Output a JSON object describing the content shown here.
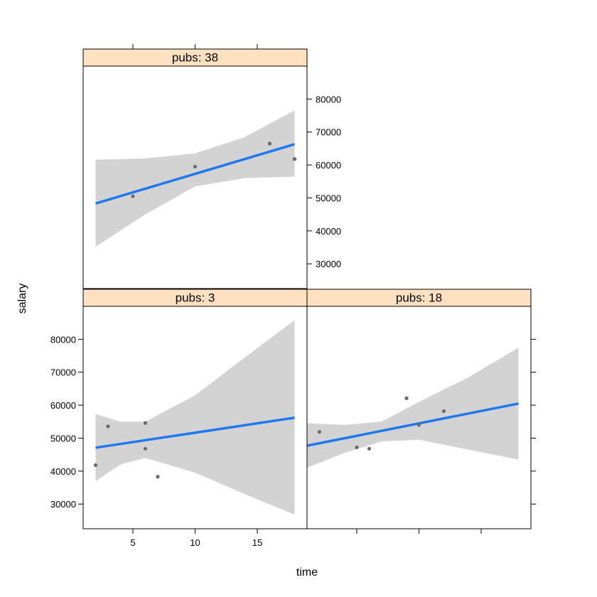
{
  "chart_data": {
    "type": "scatter",
    "xlabel": "time",
    "ylabel": "salary",
    "xlim": [
      1,
      19
    ],
    "ylim": [
      22500,
      90000
    ],
    "x_ticks": [
      5,
      10,
      15
    ],
    "y_ticks": [
      30000,
      40000,
      50000,
      60000,
      70000,
      80000
    ],
    "x_tick_labels": [
      "5",
      "10",
      "15"
    ],
    "y_tick_labels": [
      "30000",
      "40000",
      "50000",
      "60000",
      "70000",
      "80000"
    ],
    "panels": [
      {
        "strip": "pubs: 38",
        "points": [
          [
            5,
            50500
          ],
          [
            10,
            59500
          ],
          [
            16,
            66500
          ],
          [
            18,
            61800
          ]
        ],
        "fit": [
          [
            2,
            48300
          ],
          [
            18,
            66300
          ]
        ],
        "band_upper": [
          [
            2,
            61600
          ],
          [
            6,
            62000
          ],
          [
            10,
            63500
          ],
          [
            14,
            68500
          ],
          [
            18,
            76600
          ]
        ],
        "band_lower": [
          [
            2,
            35200
          ],
          [
            6,
            45000
          ],
          [
            10,
            53500
          ],
          [
            14,
            56000
          ],
          [
            18,
            56500
          ]
        ]
      },
      {
        "strip": "pubs: 3",
        "points": [
          [
            2,
            41800
          ],
          [
            3,
            53600
          ],
          [
            6,
            54600
          ],
          [
            6,
            46800
          ],
          [
            7,
            38300
          ]
        ],
        "fit": [
          [
            2,
            47100
          ],
          [
            18,
            56200
          ]
        ],
        "band_upper": [
          [
            2,
            57300
          ],
          [
            4,
            55000
          ],
          [
            6,
            55000
          ],
          [
            10,
            63000
          ],
          [
            14,
            74500
          ],
          [
            18,
            85800
          ]
        ],
        "band_lower": [
          [
            2,
            36900
          ],
          [
            4,
            42000
          ],
          [
            6,
            44000
          ],
          [
            10,
            39500
          ],
          [
            14,
            33000
          ],
          [
            18,
            26800
          ]
        ]
      },
      {
        "strip": "pubs: 18",
        "points": [
          [
            2,
            51900
          ],
          [
            5,
            47200
          ],
          [
            6,
            46800
          ],
          [
            9,
            62100
          ],
          [
            10,
            54000
          ],
          [
            12,
            58200
          ]
        ],
        "fit": [
          [
            1,
            47700
          ],
          [
            18,
            60500
          ]
        ],
        "band_upper": [
          [
            1,
            54500
          ],
          [
            4,
            54000
          ],
          [
            7,
            55000
          ],
          [
            10,
            61000
          ],
          [
            14,
            68500
          ],
          [
            18,
            77500
          ]
        ],
        "band_lower": [
          [
            1,
            41000
          ],
          [
            4,
            45500
          ],
          [
            7,
            49000
          ],
          [
            10,
            49500
          ],
          [
            14,
            46500
          ],
          [
            18,
            43500
          ]
        ]
      }
    ]
  }
}
